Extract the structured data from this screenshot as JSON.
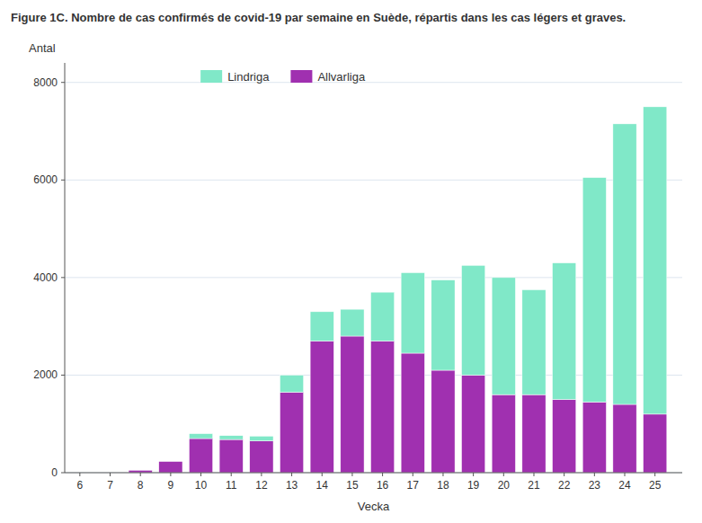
{
  "chart_data": {
    "type": "bar",
    "stacked": true,
    "title": "Figure 1C. Nombre de cas confirmés de covid-19 par semaine en Suède, répartis dans les cas légers et graves.",
    "xlabel": "Vecka",
    "ylabel": "Antal",
    "x": [
      6,
      7,
      8,
      9,
      10,
      11,
      12,
      13,
      14,
      15,
      16,
      17,
      18,
      19,
      20,
      21,
      22,
      23,
      24,
      25
    ],
    "xlim": [
      5.5,
      25.9
    ],
    "xticks": [
      6,
      7,
      8,
      9,
      10,
      11,
      12,
      13,
      14,
      15,
      16,
      17,
      18,
      19,
      20,
      21,
      22,
      23,
      24,
      25
    ],
    "ylim": [
      0,
      8400
    ],
    "yticks": [
      0,
      2000,
      4000,
      6000,
      8000
    ],
    "grid": true,
    "legend": "upper left",
    "series": [
      {
        "name": "Allvarliga",
        "color": "#a030b0",
        "values": [
          0,
          0,
          50,
          230,
          700,
          680,
          650,
          1650,
          2700,
          2800,
          2700,
          2450,
          2100,
          2000,
          1600,
          1600,
          1500,
          1450,
          1400,
          1200
        ]
      },
      {
        "name": "Lindriga",
        "color": "#80e8c8",
        "values": [
          0,
          0,
          0,
          0,
          100,
          80,
          100,
          350,
          600,
          550,
          1000,
          1650,
          1850,
          2250,
          2400,
          2150,
          2800,
          4600,
          5750,
          6300
        ]
      }
    ]
  }
}
